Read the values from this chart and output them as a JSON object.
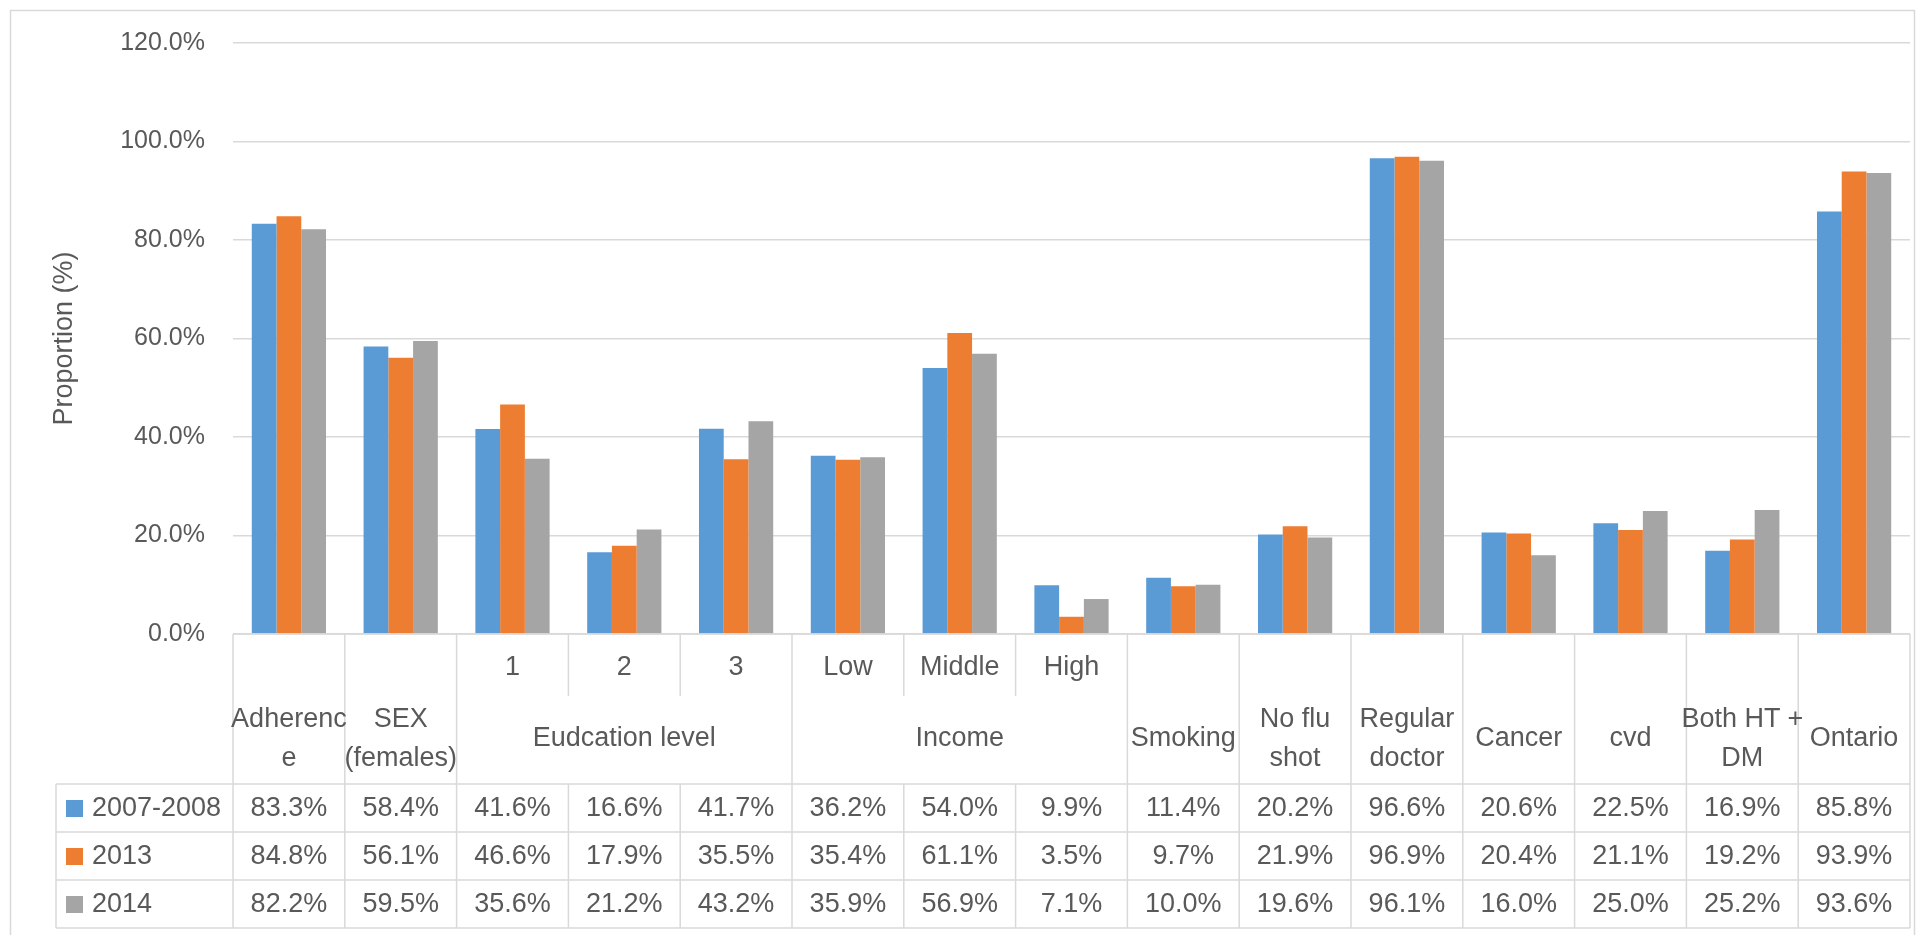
{
  "chart_data": {
    "type": "bar",
    "ylabel": "Proportion (%)",
    "categories": [
      "Adherence",
      "SEX (females)",
      "1",
      "2",
      "3",
      "Low",
      "Middle",
      "High",
      "Smoking",
      "No flu shot",
      "Regular doctor",
      "Cancer",
      "cvd",
      "Both HT + DM",
      "Ontario"
    ],
    "series": [
      {
        "name": "2007-2008",
        "color": "#5b9bd5",
        "values": [
          83.3,
          58.4,
          41.6,
          16.6,
          41.7,
          36.2,
          54.0,
          9.9,
          11.4,
          20.2,
          96.6,
          20.6,
          22.5,
          16.9,
          85.8
        ],
        "value_labels": [
          "83.3%",
          "58.4%",
          "41.6%",
          "16.6%",
          "41.7%",
          "36.2%",
          "54.0%",
          "9.9%",
          "11.4%",
          "20.2%",
          "96.6%",
          "20.6%",
          "22.5%",
          "16.9%",
          "85.8%"
        ]
      },
      {
        "name": "2013",
        "color": "#ed7d31",
        "values": [
          84.8,
          56.1,
          46.6,
          17.9,
          35.5,
          35.4,
          61.1,
          3.5,
          9.7,
          21.9,
          96.9,
          20.4,
          21.1,
          19.2,
          93.9
        ],
        "value_labels": [
          "84.8%",
          "56.1%",
          "46.6%",
          "17.9%",
          "35.5%",
          "35.4%",
          "61.1%",
          "3.5%",
          "9.7%",
          "21.9%",
          "96.9%",
          "20.4%",
          "21.1%",
          "19.2%",
          "93.9%"
        ]
      },
      {
        "name": "2014",
        "color": "#a5a5a5",
        "values": [
          82.2,
          59.5,
          35.6,
          21.2,
          43.2,
          35.9,
          56.9,
          7.1,
          10.0,
          19.6,
          96.1,
          16.0,
          25.0,
          25.2,
          93.6
        ],
        "value_labels": [
          "82.2%",
          "59.5%",
          "35.6%",
          "21.2%",
          "43.2%",
          "35.9%",
          "56.9%",
          "7.1%",
          "10.0%",
          "19.6%",
          "96.1%",
          "16.0%",
          "25.0%",
          "25.2%",
          "93.6%"
        ]
      }
    ],
    "ylim": [
      0,
      120
    ],
    "yticks": [
      {
        "value": 0,
        "label": "0.0%"
      },
      {
        "value": 20,
        "label": "20.0%"
      },
      {
        "value": 40,
        "label": "40.0%"
      },
      {
        "value": 60,
        "label": "60.0%"
      },
      {
        "value": 80,
        "label": "80.0%"
      },
      {
        "value": 100,
        "label": "100.0%"
      },
      {
        "value": 120,
        "label": "120.0%"
      }
    ],
    "grid": "y",
    "legend": "bottom",
    "annotations": [
      "Eudcation level",
      "Income"
    ]
  }
}
